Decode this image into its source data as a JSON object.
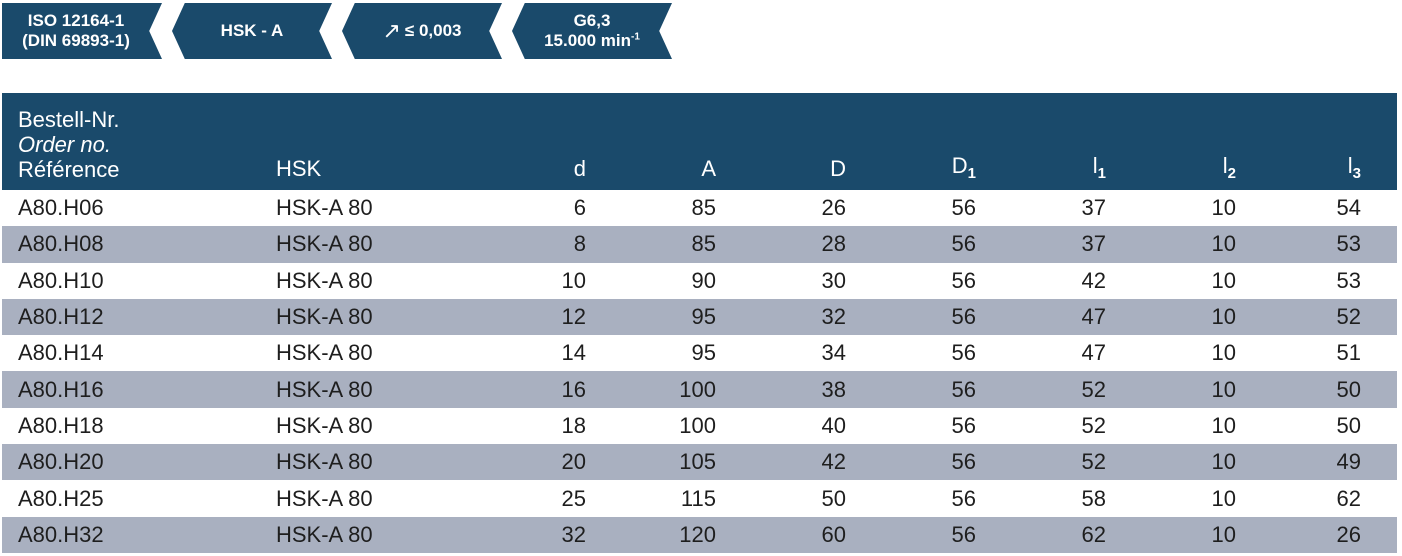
{
  "badges": {
    "standard_line1": "ISO 12164-1",
    "standard_line2": "(DIN 69893-1)",
    "interface": "HSK - A",
    "runout": "≤ 0,003",
    "balance_grade": "G6,3",
    "max_speed": "15.000 min",
    "max_speed_exp": "-1"
  },
  "icons": {
    "runout": "runout-arrow-icon"
  },
  "colors": {
    "header_bg": "#1a4a6b",
    "row_alt_bg": "#a9b0c0",
    "header_text": "#ffffff"
  },
  "table": {
    "headers": {
      "order_de": "Bestell-Nr.",
      "order_en": "Order no.",
      "order_fr": "Référence",
      "hsk": "HSK",
      "d": "d",
      "A": "A",
      "D": "D",
      "D1_base": "D",
      "D1_sub": "1",
      "l1_base": "l",
      "l1_sub": "1",
      "l2_base": "l",
      "l2_sub": "2",
      "l3_base": "l",
      "l3_sub": "3"
    },
    "rows": [
      {
        "order": "A80.H06",
        "hsk": "HSK-A 80",
        "d": "6",
        "A": "85",
        "D": "26",
        "D1": "56",
        "l1": "37",
        "l2": "10",
        "l3": "54"
      },
      {
        "order": "A80.H08",
        "hsk": "HSK-A 80",
        "d": "8",
        "A": "85",
        "D": "28",
        "D1": "56",
        "l1": "37",
        "l2": "10",
        "l3": "53"
      },
      {
        "order": "A80.H10",
        "hsk": "HSK-A 80",
        "d": "10",
        "A": "90",
        "D": "30",
        "D1": "56",
        "l1": "42",
        "l2": "10",
        "l3": "53"
      },
      {
        "order": "A80.H12",
        "hsk": "HSK-A 80",
        "d": "12",
        "A": "95",
        "D": "32",
        "D1": "56",
        "l1": "47",
        "l2": "10",
        "l3": "52"
      },
      {
        "order": "A80.H14",
        "hsk": "HSK-A 80",
        "d": "14",
        "A": "95",
        "D": "34",
        "D1": "56",
        "l1": "47",
        "l2": "10",
        "l3": "51"
      },
      {
        "order": "A80.H16",
        "hsk": "HSK-A 80",
        "d": "16",
        "A": "100",
        "D": "38",
        "D1": "56",
        "l1": "52",
        "l2": "10",
        "l3": "50"
      },
      {
        "order": "A80.H18",
        "hsk": "HSK-A 80",
        "d": "18",
        "A": "100",
        "D": "40",
        "D1": "56",
        "l1": "52",
        "l2": "10",
        "l3": "50"
      },
      {
        "order": "A80.H20",
        "hsk": "HSK-A 80",
        "d": "20",
        "A": "105",
        "D": "42",
        "D1": "56",
        "l1": "52",
        "l2": "10",
        "l3": "49"
      },
      {
        "order": "A80.H25",
        "hsk": "HSK-A 80",
        "d": "25",
        "A": "115",
        "D": "50",
        "D1": "56",
        "l1": "58",
        "l2": "10",
        "l3": "62"
      },
      {
        "order": "A80.H32",
        "hsk": "HSK-A 80",
        "d": "32",
        "A": "120",
        "D": "60",
        "D1": "56",
        "l1": "62",
        "l2": "10",
        "l3": "26"
      }
    ]
  }
}
